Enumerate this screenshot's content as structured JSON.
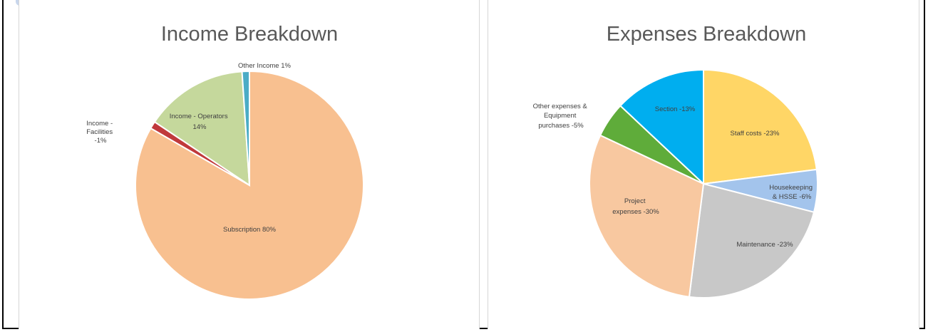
{
  "chart_data": [
    {
      "type": "pie",
      "title": "Income Breakdown",
      "slices": [
        {
          "label": "Subscription 80%",
          "value": 80,
          "color": "#f8c090"
        },
        {
          "label": "Income - Facilities -1%",
          "value": 1,
          "color": "#c0393b"
        },
        {
          "label": "Income - Operators 14%",
          "value": 14,
          "color": "#c5d89c"
        },
        {
          "label": "Other Income 1%",
          "value": 1,
          "color": "#4bacc6"
        }
      ]
    },
    {
      "type": "pie",
      "title": "Expenses Breakdown",
      "slices": [
        {
          "label": "Staff costs -23%",
          "value": 23,
          "color": "#ffd666"
        },
        {
          "label": "Housekeeping & HSSE -6%",
          "value": 6,
          "color": "#a3c4ec"
        },
        {
          "label": "Maintenance -23%",
          "value": 23,
          "color": "#c8c8c8"
        },
        {
          "label": "Project expenses -30%",
          "value": 30,
          "color": "#f8c8a0"
        },
        {
          "label": "Other expenses & Equipment purchases -5%",
          "value": 5,
          "color": "#5fac3a"
        },
        {
          "label": "Section -13%",
          "value": 13,
          "color": "#00aeef"
        }
      ]
    }
  ]
}
